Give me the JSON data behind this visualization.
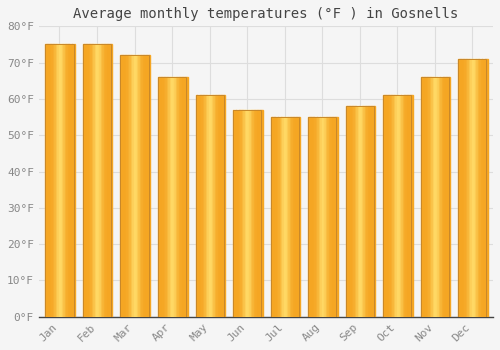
{
  "title": "Average monthly temperatures (°F ) in Gosnells",
  "months": [
    "Jan",
    "Feb",
    "Mar",
    "Apr",
    "May",
    "Jun",
    "Jul",
    "Aug",
    "Sep",
    "Oct",
    "Nov",
    "Dec"
  ],
  "values": [
    75,
    75,
    72,
    66,
    61,
    57,
    55,
    55,
    58,
    61,
    66,
    71
  ],
  "bar_color_edge": "#F5A623",
  "bar_color_center": "#FFD966",
  "bar_edge_color": "#C8882A",
  "ylim": [
    0,
    80
  ],
  "yticks": [
    0,
    10,
    20,
    30,
    40,
    50,
    60,
    70,
    80
  ],
  "ytick_labels": [
    "0°F",
    "10°F",
    "20°F",
    "30°F",
    "40°F",
    "50°F",
    "60°F",
    "70°F",
    "80°F"
  ],
  "bg_color": "#f5f5f5",
  "plot_bg_color": "#f5f5f5",
  "grid_color": "#dddddd",
  "title_fontsize": 10,
  "tick_fontsize": 8,
  "tick_color": "#888888",
  "title_color": "#444444",
  "bar_width": 0.75
}
